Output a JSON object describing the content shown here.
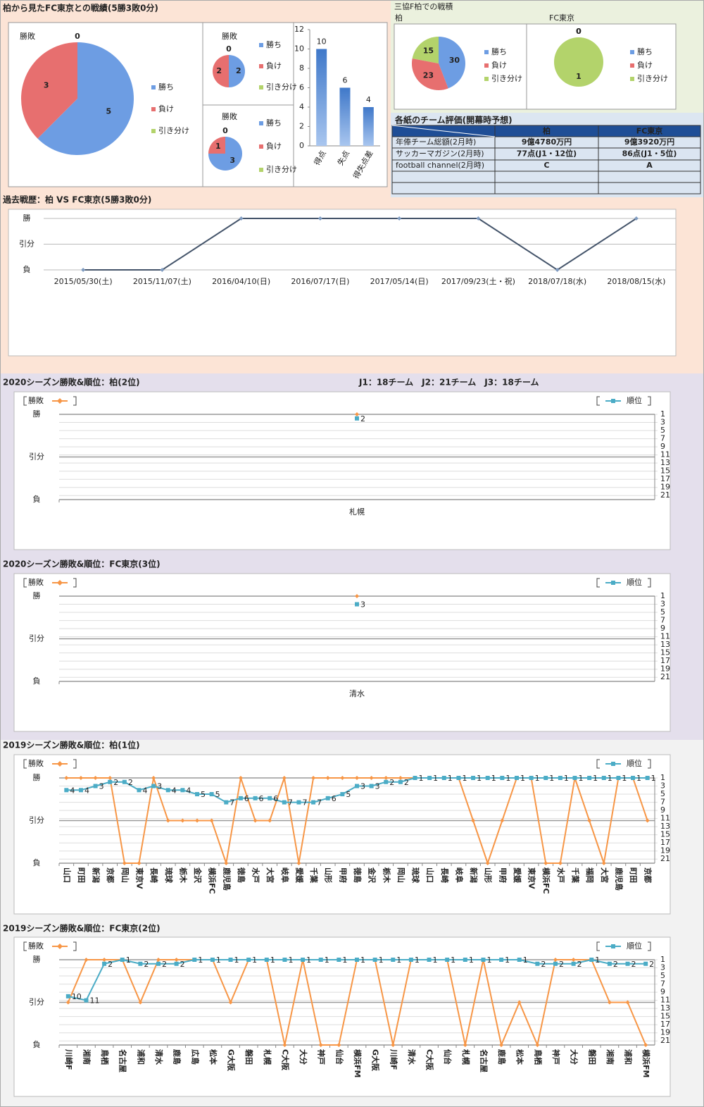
{
  "headings": [
    "柏から見たFC東京との戦績(5勝3敗0分)",
    "三協F柏での戦積"
  ],
  "table": {
    "title": "各紙のチーム評価(開幕時予想)",
    "columns": [
      "柏",
      "FC東京"
    ],
    "rows": [
      [
        "年俸チーム総額(2月時)",
        "9億4780万円",
        "9億3920万円"
      ],
      [
        "サッカーマガジン(2月時)",
        "77点(J1・12位)",
        "86点(J1・5位)"
      ],
      [
        "football channel(2月時)",
        "C",
        "A"
      ]
    ]
  },
  "chart_data": [
    {
      "type": "pie",
      "title": "勝敗",
      "categories": [
        "勝ち",
        "負け",
        "引き分け"
      ],
      "values": [
        5,
        3,
        0
      ],
      "colors": [
        "#6d9de3",
        "#e76f6f",
        "#b3d36b"
      ]
    },
    {
      "type": "pie",
      "title": "勝敗",
      "categories": [
        "勝ち",
        "負け",
        "引き分け"
      ],
      "values": [
        2,
        2,
        0
      ],
      "colors": [
        "#6d9de3",
        "#e76f6f",
        "#b3d36b"
      ]
    },
    {
      "type": "pie",
      "title": "勝敗",
      "categories": [
        "勝ち",
        "負け",
        "引き分け"
      ],
      "values": [
        3,
        1,
        0
      ],
      "colors": [
        "#6d9de3",
        "#e76f6f",
        "#b3d36b"
      ]
    },
    {
      "type": "bar",
      "categories": [
        "得点",
        "失点",
        "得失点差"
      ],
      "values": [
        10,
        6,
        4
      ],
      "color": "#5b8fd6",
      "ylim": [
        0,
        12
      ],
      "yticks": [
        0,
        2,
        4,
        6,
        8,
        10,
        12
      ]
    },
    {
      "type": "pie",
      "title": "柏",
      "categories": [
        "勝ち",
        "負け",
        "引き分け"
      ],
      "values": [
        30,
        23,
        15
      ],
      "colors": [
        "#6d9de3",
        "#e76f6f",
        "#b3d36b"
      ]
    },
    {
      "type": "pie",
      "title": "FC東京",
      "categories": [
        "勝ち",
        "負け",
        "引き分け"
      ],
      "values": [
        0,
        0,
        1
      ],
      "colors": [
        "#6d9de3",
        "#e76f6f",
        "#b3d36b"
      ]
    },
    {
      "type": "line",
      "title": "過去戦歴：柏 VS FC東京(5勝3敗0分)",
      "categories": [
        "2015/05/30(土)",
        "2015/11/07(土)",
        "2016/04/10(日)",
        "2016/07/17(日)",
        "2017/05/14(日)",
        "2017/09/23(土・祝)",
        "2018/07/18(水)",
        "2018/08/15(水)"
      ],
      "values": [
        0,
        0,
        2,
        2,
        2,
        2,
        0,
        2
      ],
      "color": "#44546a",
      "ylim": [
        0,
        2
      ],
      "yticks": [
        {
          "value": 0,
          "label": "負"
        },
        {
          "value": 1,
          "label": "引分"
        },
        {
          "value": 2,
          "label": "勝"
        }
      ],
      "grid": true
    },
    {
      "type": "combo",
      "title": "2020シーズン勝敗&順位：柏(2位)",
      "note": "J1：18チーム　J2：21チーム　J3：18チーム",
      "categories": [
        "札幌"
      ],
      "series": [
        {
          "name": "勝敗",
          "color": "#f79646",
          "values": [
            2
          ]
        },
        {
          "name": "順位",
          "color": "#4bacc6",
          "axis": "y2",
          "values": [
            2
          ]
        }
      ],
      "ylim": [
        0,
        2
      ],
      "yticks": [
        {
          "value": 0,
          "label": "負"
        },
        {
          "value": 1,
          "label": "引分"
        },
        {
          "value": 2,
          "label": "勝"
        }
      ],
      "y2lim": [
        22,
        1
      ],
      "y2ticks": [
        1,
        3,
        5,
        7,
        9,
        11,
        13,
        15,
        17,
        19,
        21
      ],
      "grid": true
    },
    {
      "type": "combo",
      "title": "2020シーズン勝敗&順位：FC東京(3位)",
      "categories": [
        "清水"
      ],
      "series": [
        {
          "name": "勝敗",
          "color": "#f79646",
          "values": [
            2
          ]
        },
        {
          "name": "順位",
          "color": "#4bacc6",
          "axis": "y2",
          "values": [
            3
          ]
        }
      ],
      "ylim": [
        0,
        2
      ],
      "yticks": [
        {
          "value": 0,
          "label": "負"
        },
        {
          "value": 1,
          "label": "引分"
        },
        {
          "value": 2,
          "label": "勝"
        }
      ],
      "y2lim": [
        22,
        1
      ],
      "y2ticks": [
        1,
        3,
        5,
        7,
        9,
        11,
        13,
        15,
        17,
        19,
        21
      ],
      "grid": true
    },
    {
      "type": "combo",
      "title": "2019シーズン勝敗&順位：柏(1位)",
      "categories": [
        "山口",
        "町田",
        "新潟",
        "京都",
        "岡山",
        "東京V",
        "長崎",
        "琉球",
        "栃木",
        "金沢",
        "横浜FC",
        "鹿児島",
        "徳島",
        "水戸",
        "大宮",
        "岐阜",
        "愛媛",
        "千葉",
        "山形",
        "甲府",
        "徳島",
        "金沢",
        "栃木",
        "岡山",
        "琉球",
        "山口",
        "長崎",
        "岐阜",
        "新潟",
        "山形",
        "甲府",
        "愛媛",
        "東京V",
        "横浜FC",
        "水戸",
        "千葉",
        "福岡",
        "大宮",
        "鹿児島",
        "町田",
        "京都"
      ],
      "series": [
        {
          "name": "勝敗",
          "color": "#f79646",
          "values": [
            2,
            2,
            2,
            2,
            0,
            0,
            2,
            1,
            1,
            1,
            1,
            0,
            2,
            1,
            1,
            2,
            0,
            2,
            2,
            2,
            2,
            2,
            2,
            2,
            2,
            2,
            2,
            2,
            1,
            0,
            1,
            2,
            2,
            0,
            0,
            2,
            1,
            0,
            2,
            2,
            1
          ]
        },
        {
          "name": "順位",
          "color": "#4bacc6",
          "axis": "y2",
          "values": [
            4,
            4,
            3,
            2,
            2,
            4,
            3,
            4,
            4,
            5,
            5,
            7,
            6,
            6,
            6,
            7,
            7,
            7,
            6,
            5,
            3,
            3,
            2,
            2,
            1,
            1,
            1,
            1,
            1,
            1,
            1,
            1,
            1,
            1,
            1,
            1,
            1,
            1,
            1,
            1,
            1
          ]
        }
      ],
      "ylim": [
        0,
        2
      ],
      "yticks": [
        {
          "value": 0,
          "label": "負"
        },
        {
          "value": 1,
          "label": "引分"
        },
        {
          "value": 2,
          "label": "勝"
        }
      ],
      "y2lim": [
        22,
        1
      ],
      "y2ticks": [
        1,
        3,
        5,
        7,
        9,
        11,
        13,
        15,
        17,
        19,
        21
      ],
      "grid": true
    },
    {
      "type": "combo",
      "title": "2019シーズン勝敗&順位：FC東京(2位)",
      "categories": [
        "川崎F",
        "湘南",
        "鳥栖",
        "名古屋",
        "浦和",
        "清水",
        "鹿島",
        "広島",
        "松本",
        "G大阪",
        "磐田",
        "札幌",
        "C大阪",
        "大分",
        "神戸",
        "仙台",
        "横浜FM",
        "G大阪",
        "川崎F",
        "清水",
        "C大阪",
        "仙台",
        "札幌",
        "名古屋",
        "鹿島",
        "松本",
        "鳥栖",
        "神戸",
        "大分",
        "磐田",
        "湘南",
        "浦和",
        "横浜FM"
      ],
      "series": [
        {
          "name": "勝敗",
          "color": "#f79646",
          "values": [
            1,
            2,
            2,
            2,
            1,
            2,
            2,
            2,
            2,
            1,
            2,
            2,
            0,
            2,
            0,
            0,
            2,
            2,
            0,
            2,
            2,
            2,
            0,
            2,
            0,
            1,
            0,
            2,
            2,
            2,
            1,
            1,
            0
          ]
        },
        {
          "name": "順位",
          "color": "#4bacc6",
          "axis": "y2",
          "values": [
            10,
            11,
            2,
            1,
            2,
            2,
            2,
            1,
            1,
            1,
            1,
            1,
            1,
            1,
            1,
            1,
            1,
            1,
            1,
            1,
            1,
            1,
            1,
            1,
            1,
            1,
            2,
            2,
            2,
            1,
            2,
            2,
            2
          ]
        }
      ],
      "ylim": [
        0,
        2
      ],
      "yticks": [
        {
          "value": 0,
          "label": "負"
        },
        {
          "value": 1,
          "label": "引分"
        },
        {
          "value": 2,
          "label": "勝"
        }
      ],
      "y2lim": [
        22,
        1
      ],
      "y2ticks": [
        1,
        3,
        5,
        7,
        9,
        11,
        13,
        15,
        17,
        19,
        21
      ],
      "grid": true
    }
  ]
}
